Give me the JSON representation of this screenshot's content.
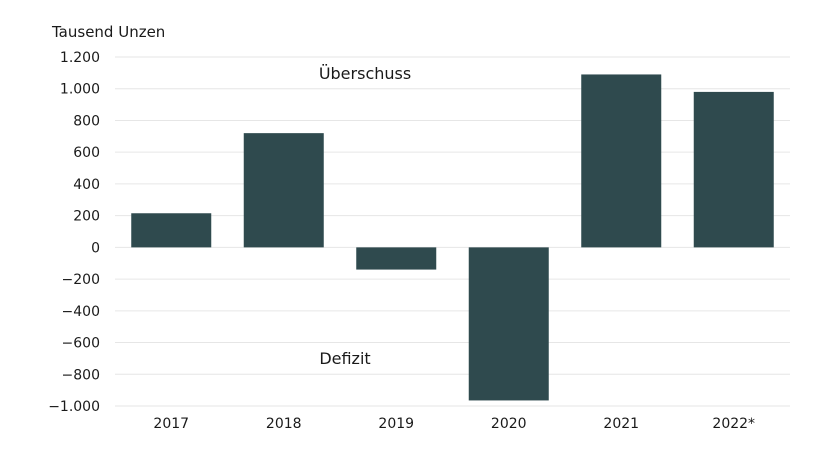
{
  "chart_data": {
    "type": "bar",
    "ylabel": "Tausend Unzen",
    "categories": [
      "2017",
      "2018",
      "2019",
      "2020",
      "2021",
      "2022*"
    ],
    "values": [
      215,
      720,
      -140,
      -965,
      1090,
      980
    ],
    "ylim": [
      -1000,
      1200
    ],
    "yticks": [
      1200,
      1000,
      800,
      600,
      400,
      200,
      0,
      -200,
      -400,
      -600,
      -800,
      -1000
    ],
    "ytick_labels": [
      "1.200",
      "1.000",
      "800",
      "600",
      "400",
      "200",
      "0",
      "−200",
      "−400",
      "−600",
      "−800",
      "−1.000"
    ],
    "annotations": {
      "positive": "Überschuss",
      "negative": "Defizit"
    },
    "bar_color": "#2f4a4e",
    "grid": true,
    "legend": "none"
  }
}
